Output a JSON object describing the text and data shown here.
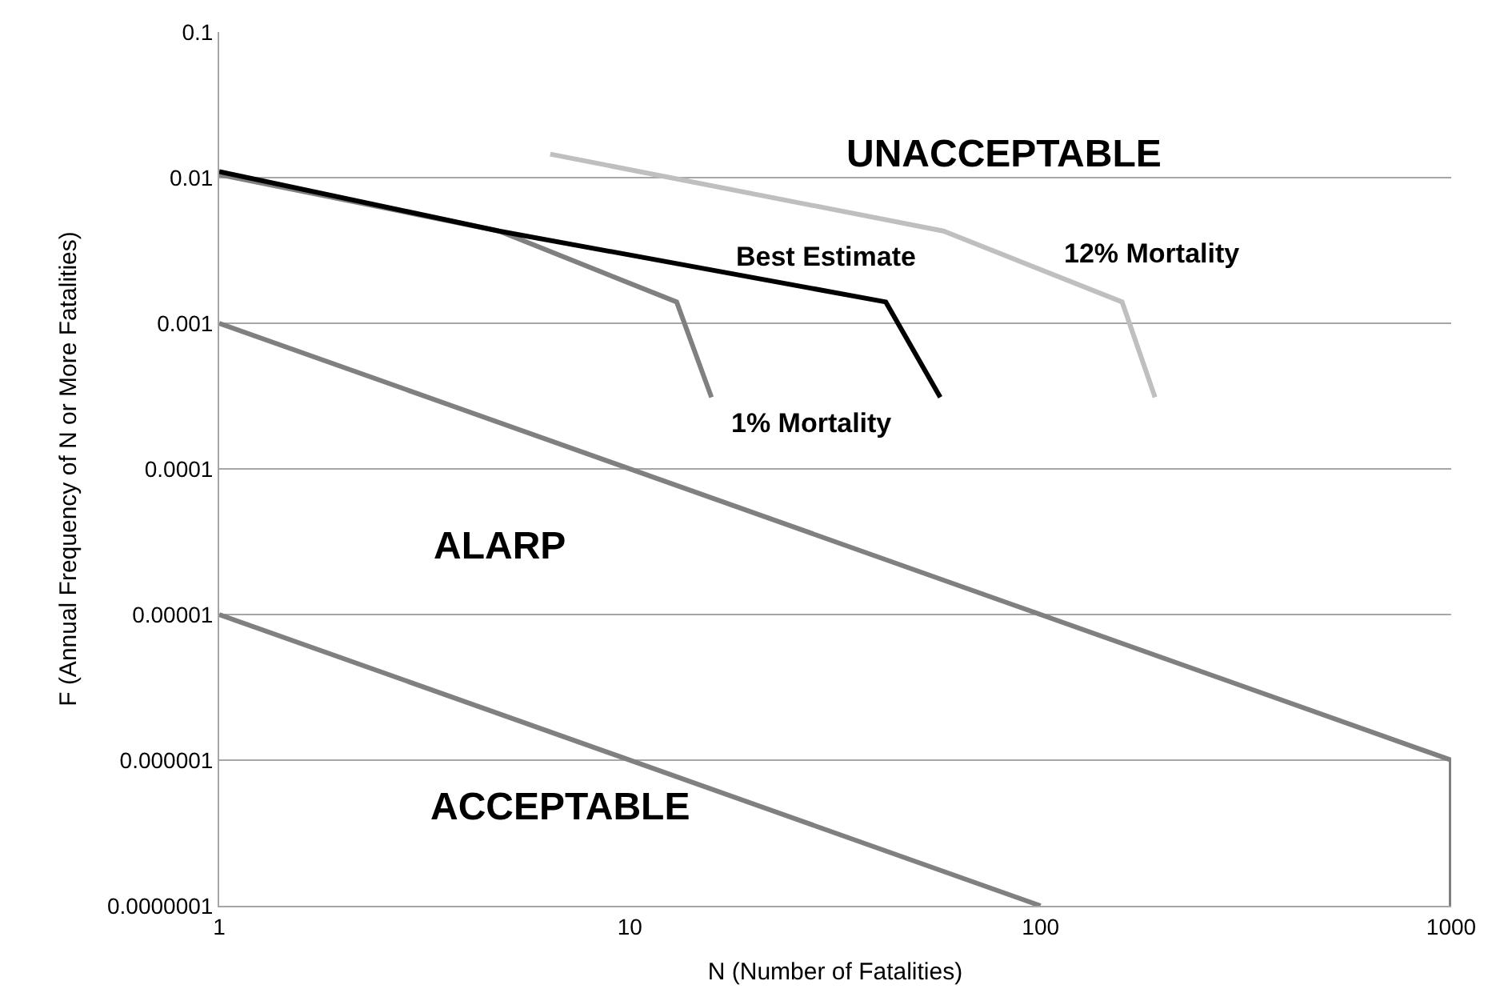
{
  "chart_data": {
    "type": "line",
    "xlabel": "N (Number of Fatalities)",
    "ylabel": "F (Annual Frequency of N or More Fatalities)",
    "log": "xy",
    "grid": "y",
    "legend": false,
    "marker": "none",
    "line_style": "solid",
    "xlim": [
      1,
      1000
    ],
    "xticks": [
      1,
      10,
      100,
      1000
    ],
    "ylim": [
      1e-07,
      0.1
    ],
    "yticks": [
      {
        "value": 0.1,
        "label": "0.1"
      },
      {
        "value": 0.01,
        "label": "0.01"
      },
      {
        "value": 0.001,
        "label": "0.001"
      },
      {
        "value": 0.0001,
        "label": "0.0001"
      },
      {
        "value": 1e-05,
        "label": "0.00001"
      },
      {
        "value": 1e-06,
        "label": "0.000001"
      },
      {
        "value": 1e-07,
        "label": "0.0000001"
      }
    ],
    "series": [
      {
        "color": "#808080",
        "x": [
          1,
          1000,
          1000
        ],
        "values": [
          0.001,
          1e-06,
          1e-07
        ]
      },
      {
        "color": "#808080",
        "x": [
          1,
          100
        ],
        "values": [
          1e-05,
          1e-07
        ]
      },
      {
        "name": "1% Mortality",
        "color": "#808080",
        "x": [
          1,
          4.8,
          13,
          15.8
        ],
        "values": [
          0.0105,
          0.0043,
          0.0014,
          0.00031
        ]
      },
      {
        "name": "12% Mortality",
        "color": "#bfbfbf",
        "x": [
          6.4,
          58,
          158,
          190
        ],
        "values": [
          0.0145,
          0.0043,
          0.0014,
          0.00031
        ]
      },
      {
        "name": "Best Estimate",
        "color": "#000000",
        "x": [
          1,
          4.8,
          42,
          57
        ],
        "values": [
          0.011,
          0.0043,
          0.0014,
          0.00031
        ]
      }
    ],
    "annotations": [
      "UNACCEPTABLE",
      "ALARP",
      "ACCEPTABLE"
    ]
  }
}
